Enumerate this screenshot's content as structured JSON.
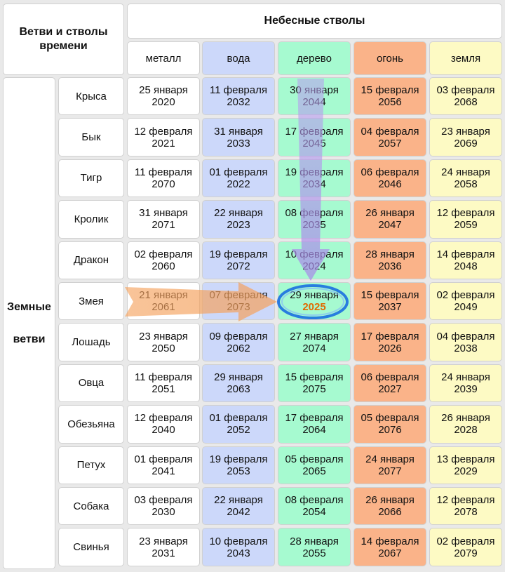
{
  "header": {
    "corner_title": "Ветви и стволы времени",
    "stems_title": "Небесные стволы",
    "branches_title_line1": "Земные",
    "branches_title_line2": "ветви"
  },
  "elements": [
    {
      "key": "metal",
      "label": "металл",
      "color": "#ffffff"
    },
    {
      "key": "water",
      "label": "вода",
      "color": "#ccd8fa"
    },
    {
      "key": "wood",
      "label": "дерево",
      "color": "#a6fad0"
    },
    {
      "key": "fire",
      "label": "огонь",
      "color": "#fab389"
    },
    {
      "key": "earth",
      "label": "земля",
      "color": "#fdfac4"
    }
  ],
  "rows": [
    {
      "animal": "Крыса",
      "dates": [
        [
          "25 января",
          "2020"
        ],
        [
          "11 февраля",
          "2032"
        ],
        [
          "30 января",
          "2044"
        ],
        [
          "15 февраля",
          "2056"
        ],
        [
          "03 февраля",
          "2068"
        ]
      ]
    },
    {
      "animal": "Бык",
      "dates": [
        [
          "12 февраля",
          "2021"
        ],
        [
          "31 января",
          "2033"
        ],
        [
          "17 февраля",
          "2045"
        ],
        [
          "04 февраля",
          "2057"
        ],
        [
          "23 января",
          "2069"
        ]
      ]
    },
    {
      "animal": "Тигр",
      "dates": [
        [
          "11 февраля",
          "2070"
        ],
        [
          "01 февраля",
          "2022"
        ],
        [
          "19 февраля",
          "2034"
        ],
        [
          "06 февраля",
          "2046"
        ],
        [
          "24 января",
          "2058"
        ]
      ]
    },
    {
      "animal": "Кролик",
      "dates": [
        [
          "31 января",
          "2071"
        ],
        [
          "22 января",
          "2023"
        ],
        [
          "08 февраля",
          "2035"
        ],
        [
          "26 января",
          "2047"
        ],
        [
          "12 февраля",
          "2059"
        ]
      ]
    },
    {
      "animal": "Дракон",
      "dates": [
        [
          "02 февраля",
          "2060"
        ],
        [
          "19 февраля",
          "2072"
        ],
        [
          "10 февраля",
          "2024"
        ],
        [
          "28 января",
          "2036"
        ],
        [
          "14 февраля",
          "2048"
        ]
      ]
    },
    {
      "animal": "Змея",
      "dates": [
        [
          "21 января",
          "2061"
        ],
        [
          "07 февраля",
          "2073"
        ],
        [
          "29 января",
          "2025"
        ],
        [
          "15 февраля",
          "2037"
        ],
        [
          "02 февраля",
          "2049"
        ]
      ]
    },
    {
      "animal": "Лошадь",
      "dates": [
        [
          "23 января",
          "2050"
        ],
        [
          "09 февраля",
          "2062"
        ],
        [
          "27 января",
          "2074"
        ],
        [
          "17 февраля",
          "2026"
        ],
        [
          "04 февраля",
          "2038"
        ]
      ]
    },
    {
      "animal": "Овца",
      "dates": [
        [
          "11 февраля",
          "2051"
        ],
        [
          "29 января",
          "2063"
        ],
        [
          "15 февраля",
          "2075"
        ],
        [
          "06 февраля",
          "2027"
        ],
        [
          "24 января",
          "2039"
        ]
      ]
    },
    {
      "animal": "Обезьяна",
      "dates": [
        [
          "12 февраля",
          "2040"
        ],
        [
          "01 февраля",
          "2052"
        ],
        [
          "17 февраля",
          "2064"
        ],
        [
          "05 февраля",
          "2076"
        ],
        [
          "26 января",
          "2028"
        ]
      ]
    },
    {
      "animal": "Петух",
      "dates": [
        [
          "01 февраля",
          "2041"
        ],
        [
          "19 февраля",
          "2053"
        ],
        [
          "05 февраля",
          "2065"
        ],
        [
          "24 января",
          "2077"
        ],
        [
          "13 февраля",
          "2029"
        ]
      ]
    },
    {
      "animal": "Собака",
      "dates": [
        [
          "03 февраля",
          "2030"
        ],
        [
          "22 января",
          "2042"
        ],
        [
          "08 февраля",
          "2054"
        ],
        [
          "26 января",
          "2066"
        ],
        [
          "12 февраля",
          "2078"
        ]
      ]
    },
    {
      "animal": "Свинья",
      "dates": [
        [
          "23 января",
          "2031"
        ],
        [
          "10 февраля",
          "2043"
        ],
        [
          "28 января",
          "2055"
        ],
        [
          "14 февраля",
          "2067"
        ],
        [
          "02 февраля",
          "2079"
        ]
      ]
    }
  ],
  "highlight": {
    "row": 5,
    "col": 2,
    "year_color": "#e06a00",
    "ring_color": "#1b6fe0"
  },
  "arrows": {
    "horizontal_color": "#f5a25e",
    "vertical_color": "#b99ef0"
  }
}
